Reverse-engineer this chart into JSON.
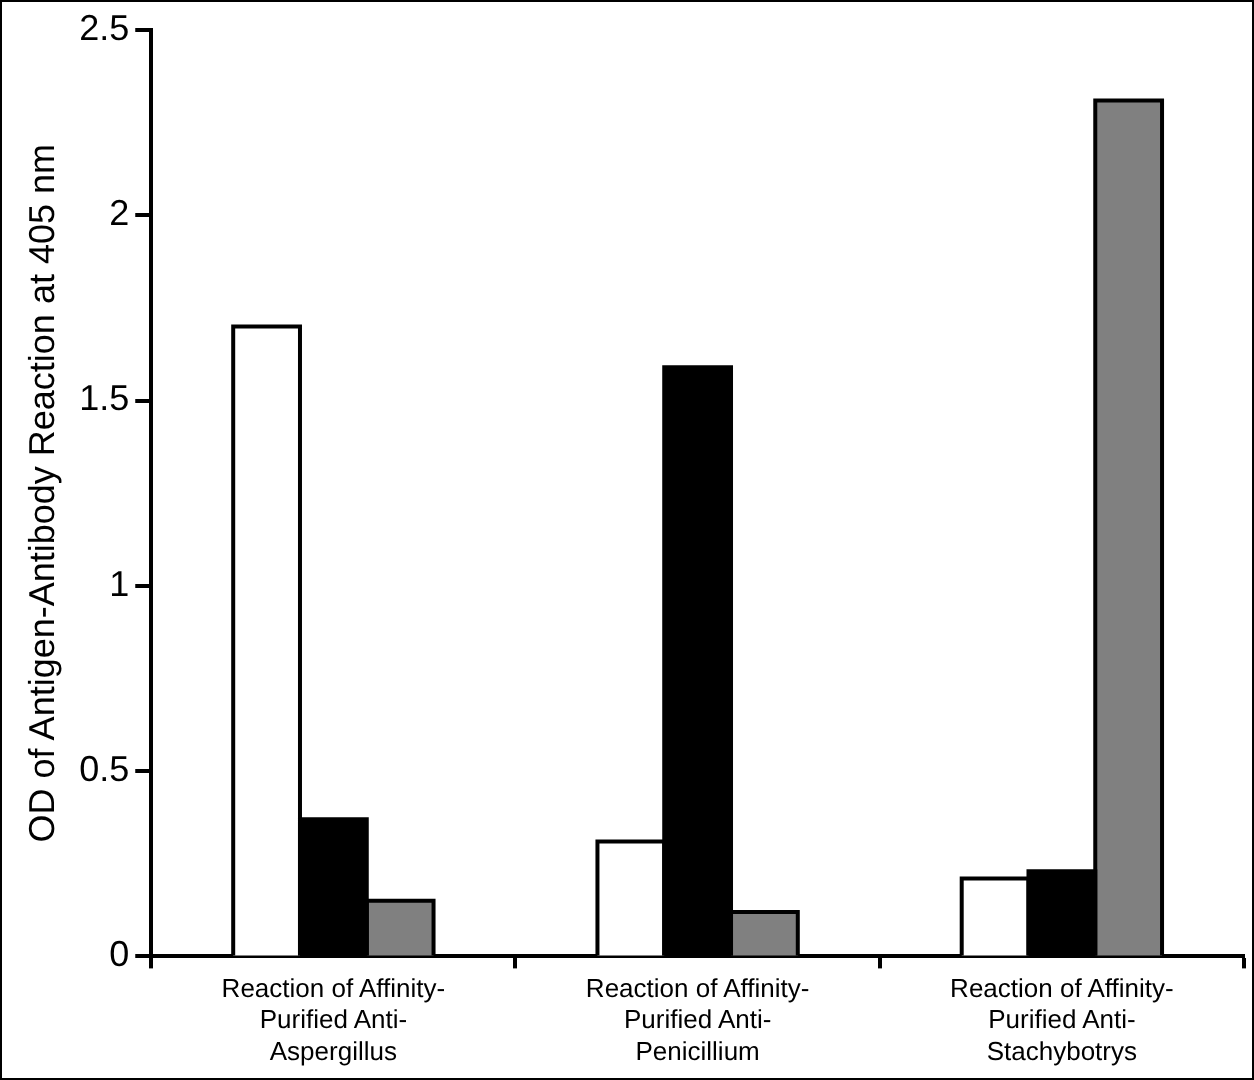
{
  "chart_data": {
    "type": "bar",
    "ylabel": "OD of Antigen-Antibody Reaction at 405 nm",
    "categories": [
      "Reaction of Affinity-Purified Anti-Aspergillus",
      "Reaction of Affinity-Purified Anti-Penicillium",
      "Reaction of Affinity-Purified Anti-Stachybotrys"
    ],
    "series": [
      {
        "color": "#ffffff",
        "values": [
          1.7,
          0.31,
          0.21
        ]
      },
      {
        "color": "#000000",
        "values": [
          0.37,
          1.59,
          0.23
        ]
      },
      {
        "color": "#808080",
        "values": [
          0.15,
          0.12,
          2.31
        ]
      }
    ],
    "ylim": [
      0,
      2.5
    ],
    "yticks": [
      0,
      0.5,
      1,
      1.5,
      2,
      2.5
    ],
    "grid": false,
    "legend": false
  }
}
